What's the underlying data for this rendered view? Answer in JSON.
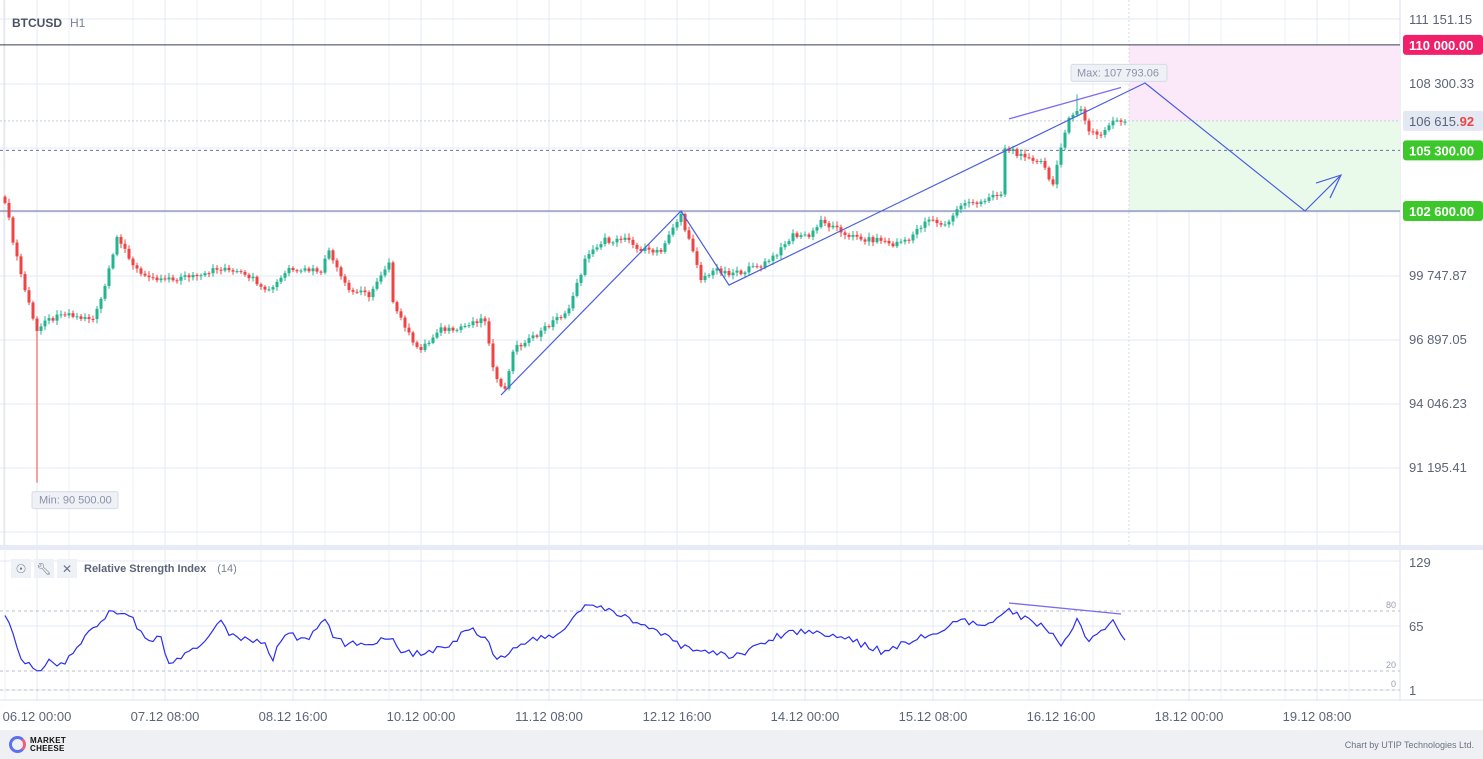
{
  "header": {
    "symbol": "BTCUSD",
    "timeframe": "H1"
  },
  "rsi_panel": {
    "name": "Relative Strength Index",
    "period": "(14)",
    "icons": [
      "eye-icon",
      "wrench-icon",
      "close-icon"
    ]
  },
  "footer": {
    "logo_line1": "MARKET",
    "logo_line2": "CHEESE",
    "credit": "Chart by UTIP Technologies Ltd."
  },
  "colors": {
    "up": "#22b58f",
    "down": "#ef4444",
    "drawing": "#4a5fe0",
    "divergence": "#7b6cf0",
    "target_high": "#f0206a",
    "target_green": "#3cc72a"
  },
  "chart_data": [
    {
      "type": "candlestick",
      "title": "BTCUSD H1",
      "start_time": "05.12 16:00",
      "interval_hours": 1,
      "ylim": [
        88000,
        112500
      ],
      "y_ticks": [
        "111 151.15",
        "108 300.33",
        "99 747.87",
        "96 897.05",
        "94 046.23",
        "91 195.41"
      ],
      "y_tick_values": [
        111151.15,
        108300.33,
        99747.87,
        96897.05,
        94046.23,
        91195.41
      ],
      "x_ticks": [
        "06.12 00:00",
        "07.12 08:00",
        "08.12 16:00",
        "10.12 00:00",
        "11.12 08:00",
        "12.12 16:00",
        "14.12 00:00",
        "15.12 08:00",
        "16.12 16:00",
        "18.12 00:00",
        "19.12 08:00"
      ],
      "x_tick_hours": [
        8,
        40,
        72,
        104,
        136,
        168,
        200,
        232,
        264,
        296,
        328
      ],
      "close_anchors_hour_price": [
        [
          0,
          103089
        ],
        [
          2,
          101308
        ],
        [
          5,
          99081
        ],
        [
          8,
          97300
        ],
        [
          11,
          97745
        ],
        [
          15,
          97967
        ],
        [
          22,
          97745
        ],
        [
          25,
          99304
        ],
        [
          28,
          101531
        ],
        [
          31,
          100417
        ],
        [
          36,
          99526
        ],
        [
          42,
          99526
        ],
        [
          52,
          99972
        ],
        [
          59,
          99972
        ],
        [
          66,
          99081
        ],
        [
          71,
          100061
        ],
        [
          79,
          99972
        ],
        [
          81,
          100863
        ],
        [
          86,
          99081
        ],
        [
          91,
          98858
        ],
        [
          96,
          100194
        ],
        [
          97,
          98636
        ],
        [
          101,
          97076
        ],
        [
          104,
          96409
        ],
        [
          109,
          97300
        ],
        [
          116,
          97522
        ],
        [
          120,
          97745
        ],
        [
          122,
          95517
        ],
        [
          125,
          94626
        ],
        [
          127,
          96409
        ],
        [
          131,
          96854
        ],
        [
          136,
          97522
        ],
        [
          141,
          98190
        ],
        [
          145,
          100417
        ],
        [
          150,
          101308
        ],
        [
          155,
          101308
        ],
        [
          159,
          100863
        ],
        [
          164,
          100863
        ],
        [
          169,
          102421
        ],
        [
          171,
          101308
        ],
        [
          174,
          99526
        ],
        [
          177,
          99972
        ],
        [
          181,
          99749
        ],
        [
          189,
          100194
        ],
        [
          194,
          100863
        ],
        [
          197,
          101531
        ],
        [
          201,
          101531
        ],
        [
          204,
          102109
        ],
        [
          209,
          101664
        ],
        [
          214,
          101308
        ],
        [
          219,
          101308
        ],
        [
          222,
          101085
        ],
        [
          226,
          101397
        ],
        [
          231,
          102198
        ],
        [
          235,
          101976
        ],
        [
          239,
          102866
        ],
        [
          245,
          103089
        ],
        [
          249,
          103312
        ],
        [
          250,
          105316
        ],
        [
          252,
          105316
        ],
        [
          255,
          104871
        ],
        [
          259,
          104871
        ],
        [
          262,
          103757
        ],
        [
          264,
          105316
        ],
        [
          266,
          106875
        ],
        [
          269,
          107098
        ],
        [
          271,
          106207
        ],
        [
          274,
          105984
        ],
        [
          276,
          106430
        ],
        [
          278,
          106653
        ],
        [
          280,
          106608
        ]
      ],
      "min": {
        "label": "Min: 90 500.00",
        "value": 90500,
        "hour": 8
      },
      "max": {
        "label": "Max: 107 793.06",
        "value": 107793.06,
        "hour": 268
      },
      "current_price": {
        "main": "106 615.",
        "accent": "92",
        "value": 106615.92
      },
      "levels": [
        {
          "label": "110 000.00",
          "value": 110000,
          "color": "#f0206a",
          "style": "solid"
        },
        {
          "label": "105 300.00",
          "value": 105300,
          "color": "#3cc72a",
          "style": "dashed"
        },
        {
          "label": "102 600.00",
          "value": 102600,
          "color": "#3cc72a",
          "style": "solid"
        }
      ],
      "drawings": {
        "trend_path_hour_price": [
          [
            124,
            94400
          ],
          [
            169,
            102600
          ],
          [
            181,
            99300
          ],
          [
            285,
            108300
          ],
          [
            325,
            102600
          ],
          [
            334,
            104200
          ]
        ],
        "price_divergence_hour_price": [
          [
            251,
            106700
          ],
          [
            279,
            108100
          ]
        ]
      },
      "zones": {
        "start_hour": 281,
        "stop_top": 110000,
        "entry": 106615.92,
        "target_bottom": 102600
      }
    },
    {
      "type": "line",
      "title": "Relative Strength Index (14)",
      "ylim": [
        1,
        129
      ],
      "y_ticks": [
        "129",
        "65",
        "1"
      ],
      "y_tick_values": [
        129,
        65,
        1
      ],
      "levels": [
        {
          "label": "80",
          "value": 80
        },
        {
          "label": "20",
          "value": 20
        },
        {
          "label": "0",
          "value": 0
        }
      ],
      "anchors_hour_value": [
        [
          0,
          79
        ],
        [
          4,
          31
        ],
        [
          8,
          20
        ],
        [
          11,
          30
        ],
        [
          14,
          25
        ],
        [
          18,
          43
        ],
        [
          21,
          61
        ],
        [
          24,
          71
        ],
        [
          27,
          80
        ],
        [
          31,
          78
        ],
        [
          35,
          51
        ],
        [
          39,
          53
        ],
        [
          41,
          26
        ],
        [
          45,
          36
        ],
        [
          49,
          44
        ],
        [
          54,
          74
        ],
        [
          56,
          55
        ],
        [
          60,
          51
        ],
        [
          64,
          51
        ],
        [
          67,
          33
        ],
        [
          70,
          59
        ],
        [
          74,
          51
        ],
        [
          76,
          53
        ],
        [
          80,
          73
        ],
        [
          82,
          53
        ],
        [
          86,
          46
        ],
        [
          92,
          49
        ],
        [
          96,
          55
        ],
        [
          99,
          41
        ],
        [
          104,
          36
        ],
        [
          107,
          41
        ],
        [
          111,
          43
        ],
        [
          116,
          64
        ],
        [
          120,
          55
        ],
        [
          122,
          37
        ],
        [
          124,
          33
        ],
        [
          130,
          50
        ],
        [
          138,
          55
        ],
        [
          145,
          86
        ],
        [
          151,
          80
        ],
        [
          158,
          70
        ],
        [
          169,
          45
        ],
        [
          182,
          34
        ],
        [
          196,
          60
        ],
        [
          206,
          58
        ],
        [
          219,
          40
        ],
        [
          234,
          60
        ],
        [
          239,
          70
        ],
        [
          245,
          63
        ],
        [
          250,
          82
        ],
        [
          259,
          65
        ],
        [
          264,
          48
        ],
        [
          268,
          70
        ],
        [
          271,
          48
        ],
        [
          277,
          70
        ],
        [
          280,
          50
        ]
      ],
      "divergence_hour_value": [
        [
          251,
          88
        ],
        [
          279,
          77
        ]
      ]
    }
  ]
}
